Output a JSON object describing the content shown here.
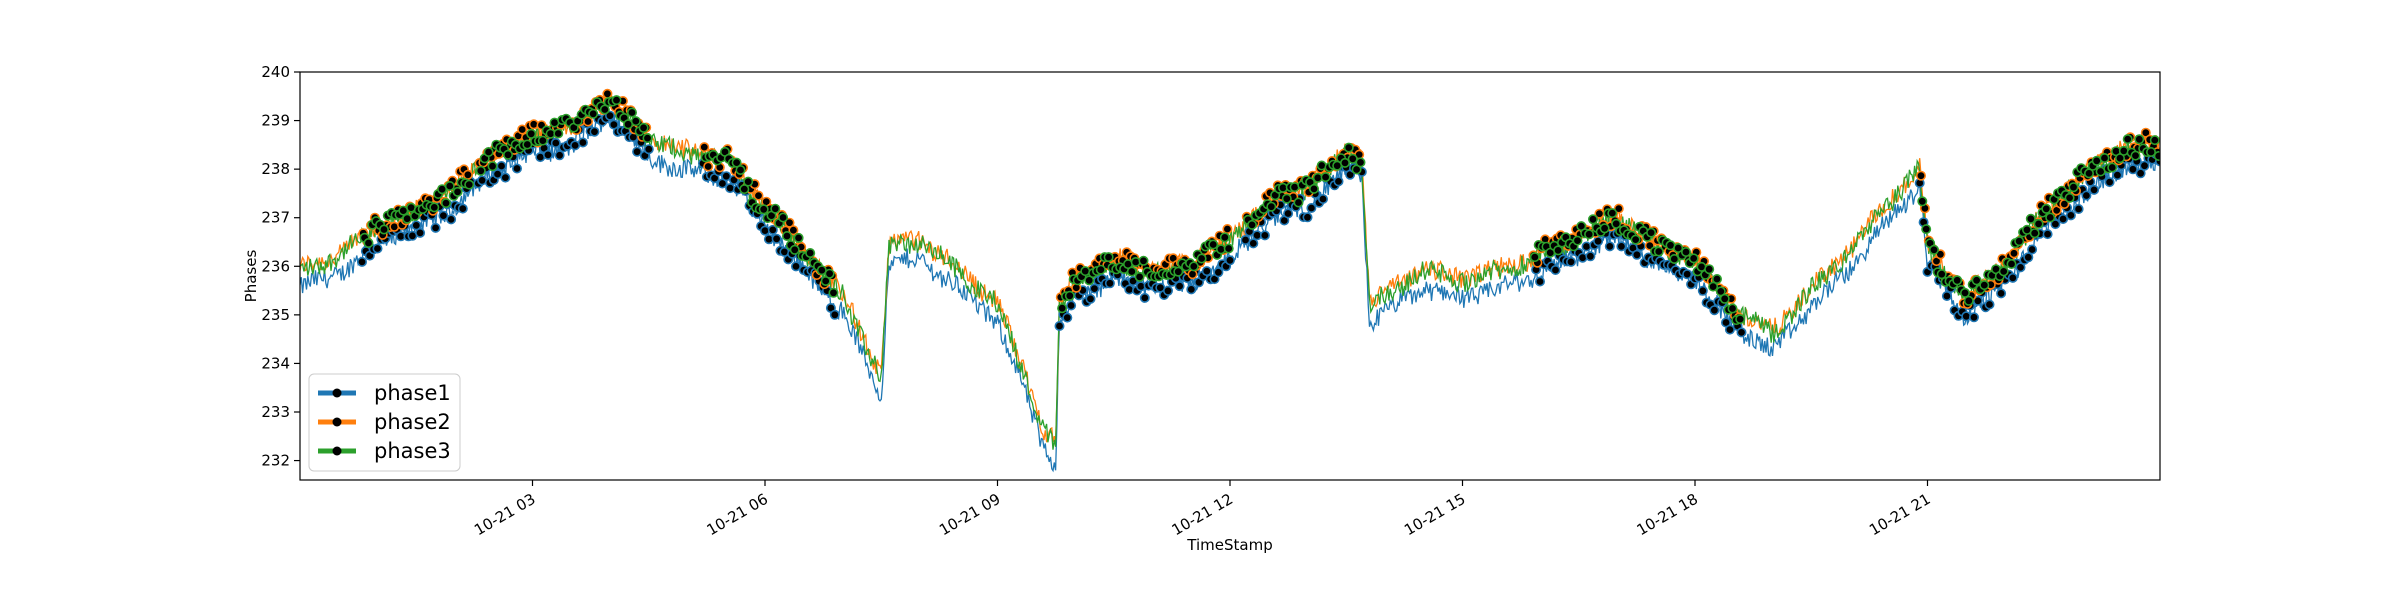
{
  "chart_data": {
    "type": "line",
    "xlabel": "TimeStamp",
    "ylabel": "Phases",
    "xlim": [
      "10-21 00:00",
      "24:00"
    ],
    "ylim": [
      231.6,
      240
    ],
    "grid": false,
    "legend_position": "lower-left",
    "y_ticks": [
      "232",
      "233",
      "234",
      "235",
      "236",
      "237",
      "238",
      "239",
      "240"
    ],
    "x_ticks": [
      {
        "label": "10-21 03",
        "hour": 3
      },
      {
        "label": "10-21 06",
        "hour": 6
      },
      {
        "label": "10-21 09",
        "hour": 9
      },
      {
        "label": "10-21 12",
        "hour": 12
      },
      {
        "label": "10-21 15",
        "hour": 15
      },
      {
        "label": "10-21 18",
        "hour": 18
      },
      {
        "label": "10-21 21",
        "hour": 21
      }
    ],
    "series": [
      {
        "name": "phase1",
        "color": "#1f77b4",
        "offset": -0.35,
        "markers": "outlier points marked"
      },
      {
        "name": "phase2",
        "color": "#ff7f0e",
        "offset": 0.05,
        "markers": "outlier points marked"
      },
      {
        "name": "phase3",
        "color": "#2ca02c",
        "offset": 0.0,
        "markers": "outlier points marked"
      }
    ],
    "hours": [
      0,
      0.5,
      1,
      1.5,
      2,
      2.5,
      3,
      3.5,
      4,
      4.5,
      5,
      5.5,
      6,
      6.5,
      7,
      7.5,
      7.6,
      8,
      8.5,
      9,
      9.3,
      9.6,
      9.75,
      9.8,
      10,
      10.5,
      11,
      11.5,
      12,
      12.5,
      13,
      13.5,
      13.7,
      13.8,
      14,
      14.5,
      15,
      15.5,
      16,
      16.5,
      17,
      17.5,
      18,
      18.5,
      19,
      19.5,
      20,
      20.5,
      20.9,
      21,
      21.5,
      22,
      22.5,
      23,
      23.5,
      24
    ],
    "base_values": [
      235.9,
      236.2,
      236.8,
      237.1,
      237.6,
      238.3,
      238.7,
      238.8,
      239.5,
      238.6,
      238.3,
      238.2,
      237.2,
      236.3,
      235.4,
      233.7,
      236.4,
      236.5,
      235.9,
      235.2,
      234.0,
      232.6,
      232.3,
      235.2,
      235.7,
      236.1,
      235.9,
      236.0,
      236.5,
      237.3,
      237.6,
      238.3,
      238.2,
      235.2,
      235.4,
      235.9,
      235.7,
      235.9,
      236.2,
      236.6,
      237.0,
      236.4,
      236.1,
      235.1,
      234.6,
      235.5,
      236.3,
      237.3,
      238.0,
      236.4,
      235.3,
      236.0,
      237.1,
      237.8,
      238.4,
      238.5
    ],
    "marker_windows": [
      [
        0.8,
        2.2
      ],
      [
        2.3,
        4.5
      ],
      [
        5.2,
        6.9
      ],
      [
        9.8,
        12.0
      ],
      [
        12.2,
        13.7
      ],
      [
        15.9,
        18.6
      ],
      [
        20.9,
        24
      ]
    ]
  }
}
